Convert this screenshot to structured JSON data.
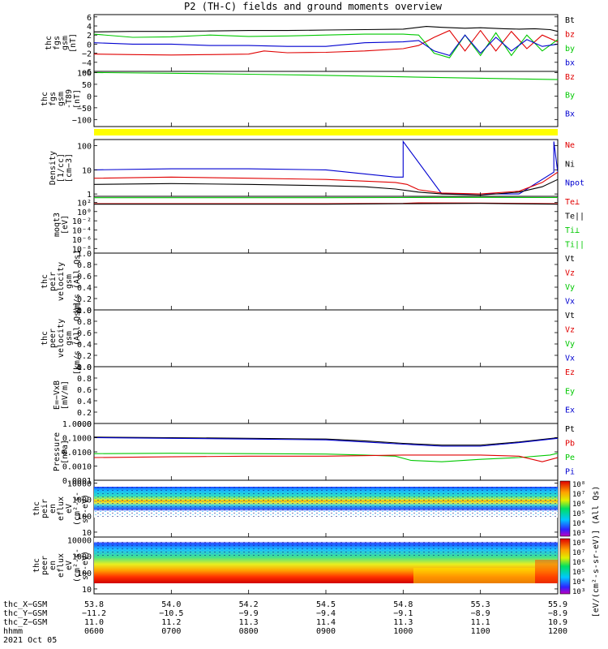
{
  "title": "P2 (TH-C) fields and ground moments overview",
  "colors": {
    "black": "#000000",
    "red": "#e00000",
    "green": "#00c800",
    "blue": "#0000d0"
  },
  "chart_data": [
    {
      "type": "line",
      "name": "fgs-gsm",
      "ylabel_lines": [
        "thc",
        "fgs",
        "gsm",
        "[nT]"
      ],
      "yticks": [
        "6",
        "4",
        "2",
        "0",
        "−2",
        "−4",
        "−6"
      ],
      "ylim": [
        -6,
        6.5
      ],
      "legend": [
        {
          "label": "Bt",
          "color": "black"
        },
        {
          "label": "bz",
          "color": "red"
        },
        {
          "label": "by",
          "color": "green"
        },
        {
          "label": "bx",
          "color": "blue"
        }
      ],
      "series": [
        {
          "name": "Bt",
          "color": "black",
          "x": [
            6.0,
            6.5,
            7.0,
            7.5,
            8.0,
            8.5,
            9.0,
            9.5,
            10.0,
            10.3,
            10.5,
            10.8,
            11.0,
            11.3,
            11.5,
            11.7,
            11.9,
            12.0
          ],
          "y": [
            2.7,
            2.8,
            2.8,
            2.9,
            3.0,
            3.0,
            3.1,
            3.2,
            3.3,
            3.9,
            3.7,
            3.5,
            3.6,
            3.4,
            3.3,
            3.4,
            3.2,
            2.8
          ]
        },
        {
          "name": "bz",
          "color": "red",
          "x": [
            6.0,
            6.5,
            7.0,
            7.5,
            8.0,
            8.2,
            8.5,
            9.0,
            9.5,
            10.0,
            10.2,
            10.4,
            10.6,
            10.8,
            11.0,
            11.2,
            11.4,
            11.6,
            11.8,
            12.0
          ],
          "y": [
            -2.2,
            -2.3,
            -2.4,
            -2.3,
            -2.2,
            -1.5,
            -1.9,
            -1.8,
            -1.5,
            -1.0,
            -0.3,
            1.5,
            3.0,
            -1.5,
            3.0,
            -1.5,
            2.8,
            -1.0,
            2.0,
            0.5
          ]
        },
        {
          "name": "by",
          "color": "green",
          "x": [
            6.0,
            6.5,
            7.0,
            7.5,
            8.0,
            8.5,
            9.0,
            9.5,
            10.0,
            10.2,
            10.4,
            10.6,
            10.8,
            11.0,
            11.2,
            11.4,
            11.6,
            11.8,
            12.0
          ],
          "y": [
            2.2,
            1.5,
            1.6,
            2.0,
            1.7,
            1.8,
            2.0,
            2.2,
            2.2,
            2.0,
            -2.0,
            -3.0,
            2.0,
            -2.5,
            2.5,
            -2.5,
            2.0,
            -1.5,
            1.0
          ]
        },
        {
          "name": "bx",
          "color": "blue",
          "x": [
            6.0,
            6.5,
            7.0,
            7.5,
            8.0,
            8.5,
            9.0,
            9.5,
            10.0,
            10.2,
            10.4,
            10.6,
            10.8,
            11.0,
            11.2,
            11.4,
            11.6,
            11.8,
            12.0
          ],
          "y": [
            0.3,
            0.0,
            0.0,
            -0.3,
            -0.3,
            -0.5,
            -0.5,
            0.3,
            0.5,
            0.8,
            -1.5,
            -2.5,
            2.0,
            -2.0,
            1.5,
            -1.5,
            1.0,
            -0.5,
            0.0
          ]
        }
      ]
    },
    {
      "type": "line",
      "name": "fgs-gsm-t89",
      "ylabel_lines": [
        "thc",
        "fgs",
        "gsm",
        "-T89",
        "[nT]"
      ],
      "yticks": [
        "100",
        "50",
        "0",
        "−50",
        "−100"
      ],
      "ylim": [
        -130,
        105
      ],
      "legend": [
        {
          "label": "Bz",
          "color": "red"
        },
        {
          "label": "By",
          "color": "green"
        },
        {
          "label": "Bx",
          "color": "blue"
        }
      ],
      "series": [
        {
          "name": "By",
          "color": "green",
          "x": [
            6.0,
            7.0,
            8.0,
            9.0,
            10.0,
            11.0,
            12.0
          ],
          "y": [
            100,
            97,
            93,
            88,
            82,
            76,
            70
          ]
        }
      ],
      "band_color": "#ffff00"
    },
    {
      "type": "line",
      "name": "density",
      "yscale": "log",
      "ylabel_lines": [
        "Density",
        "[1/cc]",
        "[cm−3]"
      ],
      "yticks": [
        "100",
        "10",
        "1"
      ],
      "ylim": [
        0.8,
        180
      ],
      "legend": [
        {
          "label": "Ne",
          "color": "red"
        },
        {
          "label": "Ni",
          "color": "black"
        },
        {
          "label": "Npot",
          "color": "blue"
        }
      ],
      "series": [
        {
          "name": "Npot",
          "color": "blue",
          "x": [
            6.0,
            7.0,
            8.0,
            9.0,
            9.9,
            10.0,
            10.0,
            10.5,
            11.0,
            11.5,
            11.95,
            11.95,
            12.0
          ],
          "y": [
            10,
            11,
            11,
            10,
            5,
            5,
            150,
            1.0,
            1.0,
            1.0,
            8,
            150,
            8
          ]
        },
        {
          "name": "Ne",
          "color": "red",
          "x": [
            6.0,
            7.0,
            8.0,
            9.0,
            9.9,
            10.05,
            10.2,
            10.5,
            11.0,
            11.5,
            11.8,
            12.0
          ],
          "y": [
            4.5,
            5,
            4.5,
            4,
            3,
            2.5,
            1.5,
            1.1,
            1.0,
            1.3,
            3,
            8
          ]
        },
        {
          "name": "Ni",
          "color": "black",
          "x": [
            6.0,
            7.0,
            8.0,
            9.0,
            9.5,
            9.9,
            10.2,
            10.5,
            11.0,
            11.5,
            11.8,
            12.0
          ],
          "y": [
            2.5,
            2.7,
            2.5,
            2.2,
            2.0,
            1.6,
            1.2,
            1.0,
            0.9,
            1.2,
            2,
            4
          ]
        }
      ]
    },
    {
      "type": "line",
      "name": "moqt3",
      "yscale": "log",
      "ylabel_lines": [
        "moqt3",
        "[eV]"
      ],
      "yticks": [
        "10²",
        "10⁰",
        "10⁻²",
        "10⁻⁴",
        "10⁻⁶",
        "10⁻⁸"
      ],
      "ylim": [
        1e-09,
        2000
      ],
      "legend": [
        {
          "label": "Te⊥",
          "color": "red"
        },
        {
          "label": "Te||",
          "color": "black"
        },
        {
          "label": "Ti⊥",
          "color": "green"
        },
        {
          "label": "Ti||",
          "color": "green"
        }
      ],
      "series": [
        {
          "name": "Ti||",
          "color": "green",
          "x": [
            6.0,
            9.0,
            10.0,
            11.0,
            12.0
          ],
          "y": [
            1000,
            1000,
            1100,
            1200,
            1100
          ]
        },
        {
          "name": "Te⊥",
          "color": "red",
          "x": [
            6.0,
            9.0,
            10.0,
            10.2,
            11.0,
            12.0
          ],
          "y": [
            50,
            50,
            60,
            80,
            70,
            50
          ]
        },
        {
          "name": "Te||",
          "color": "black",
          "x": [
            6.0,
            9.0,
            10.0,
            11.0,
            12.0
          ],
          "y": [
            40,
            40,
            50,
            60,
            40
          ]
        }
      ]
    },
    {
      "type": "line",
      "name": "peir-velocity",
      "ylabel_lines": [
        "thc",
        "peir",
        "velocity",
        "gsm",
        "km/s (All Qs)"
      ],
      "yticks": [
        "1.0",
        "0.8",
        "0.6",
        "0.4",
        "0.2",
        "0.0"
      ],
      "ylim": [
        0,
        1
      ],
      "legend": [
        {
          "label": "Vt",
          "color": "black"
        },
        {
          "label": "Vz",
          "color": "red"
        },
        {
          "label": "Vy",
          "color": "green"
        },
        {
          "label": "Vx",
          "color": "blue"
        }
      ],
      "series": []
    },
    {
      "type": "line",
      "name": "peer-velocity",
      "ylabel_lines": [
        "thc",
        "peer",
        "velocity",
        "gsm",
        "[km/s (All Qs)]"
      ],
      "yticks": [
        "1.0",
        "0.8",
        "0.6",
        "0.4",
        "0.2",
        "0.0"
      ],
      "ylim": [
        0,
        1
      ],
      "legend": [
        {
          "label": "Vt",
          "color": "black"
        },
        {
          "label": "Vz",
          "color": "red"
        },
        {
          "label": "Vy",
          "color": "green"
        },
        {
          "label": "Vx",
          "color": "blue"
        }
      ],
      "series": []
    },
    {
      "type": "line",
      "name": "e-field",
      "ylabel_lines": [
        "E=−VxB",
        "[mV/m]"
      ],
      "yticks": [
        "1.0",
        "0.8",
        "0.6",
        "0.4",
        "0.2",
        "0.0"
      ],
      "ylim": [
        0,
        1
      ],
      "legend": [
        {
          "label": "Ez",
          "color": "red"
        },
        {
          "label": "Ey",
          "color": "green"
        },
        {
          "label": "Ex",
          "color": "blue"
        }
      ],
      "series": []
    },
    {
      "type": "line",
      "name": "pressure",
      "yscale": "log",
      "ylabel_lines": [
        "Pressure",
        "[nPa]"
      ],
      "yticks": [
        "1.0000",
        "0.1000",
        "0.0100",
        "0.0010",
        "0.0001"
      ],
      "ylim": [
        0.0001,
        1
      ],
      "legend": [
        {
          "label": "Pt",
          "color": "black"
        },
        {
          "label": "Pb",
          "color": "red"
        },
        {
          "label": "Pe",
          "color": "green"
        },
        {
          "label": "Pi",
          "color": "blue"
        }
      ],
      "series": [
        {
          "name": "Pt",
          "color": "black",
          "x": [
            6.0,
            7.0,
            8.0,
            9.0,
            9.5,
            10.0,
            10.5,
            11.0,
            11.5,
            12.0
          ],
          "y": [
            0.11,
            0.1,
            0.09,
            0.08,
            0.06,
            0.04,
            0.03,
            0.03,
            0.05,
            0.1
          ]
        },
        {
          "name": "Pi",
          "color": "blue",
          "x": [
            6.0,
            7.0,
            8.0,
            9.0,
            9.5,
            10.0,
            10.5,
            11.0,
            11.5,
            12.0
          ],
          "y": [
            0.1,
            0.09,
            0.08,
            0.07,
            0.05,
            0.035,
            0.025,
            0.025,
            0.045,
            0.09
          ]
        },
        {
          "name": "Pe",
          "color": "green",
          "x": [
            6.0,
            7.0,
            8.0,
            9.0,
            9.5,
            9.9,
            10.1,
            10.5,
            11.0,
            11.5,
            11.9,
            12.0
          ],
          "y": [
            0.0075,
            0.008,
            0.0075,
            0.007,
            0.006,
            0.005,
            0.0025,
            0.002,
            0.003,
            0.004,
            0.006,
            0.008
          ]
        },
        {
          "name": "Pb",
          "color": "red",
          "x": [
            6.0,
            7.0,
            8.0,
            9.0,
            10.0,
            11.0,
            11.5,
            11.8,
            12.0
          ],
          "y": [
            0.004,
            0.0045,
            0.005,
            0.005,
            0.006,
            0.006,
            0.005,
            0.002,
            0.004
          ]
        }
      ]
    },
    {
      "type": "heatmap",
      "name": "peir-spectrogram",
      "yscale": "log",
      "ylabel_lines": [
        "thc",
        "peir",
        "en",
        "eflux",
        "eV",
        "(cm²-s-",
        "sr-eV)"
      ],
      "yticks": [
        "10000",
        "1000",
        "100",
        "10"
      ],
      "ylim": [
        5,
        15000
      ]
    },
    {
      "type": "heatmap",
      "name": "peer-spectrogram",
      "yscale": "log",
      "ylabel_lines": [
        "thc",
        "peer",
        "en",
        "eflux",
        "eV",
        "(cm²-s-",
        "sr-eV)"
      ],
      "yticks": [
        "10000",
        "1000",
        "100",
        "10"
      ],
      "ylim": [
        5,
        15000
      ]
    }
  ],
  "colorbar": {
    "labels": [
      "10⁸",
      "10⁷",
      "10⁶",
      "10⁵",
      "10⁴",
      "10³",
      "10⁸",
      "10⁷",
      "10⁶",
      "10⁵",
      "10⁴",
      "10³"
    ],
    "title": "[eV/(cm²-s-sr-eV)] (All Qs)"
  },
  "xaxis": {
    "rows": [
      {
        "label": "thc_X−GSM",
        "values": [
          "53.8",
          "54.0",
          "54.2",
          "54.5",
          "54.8",
          "55.3",
          "55.9"
        ]
      },
      {
        "label": "thc_Y−GSM",
        "values": [
          "−11.2",
          "−10.5",
          "−9.9",
          "−9.4",
          "−9.1",
          "−8.9",
          "−8.9"
        ]
      },
      {
        "label": "thc_Z−GSM",
        "values": [
          "11.0",
          "11.2",
          "11.3",
          "11.4",
          "11.3",
          "11.1",
          "10.9"
        ]
      },
      {
        "label": "hhmm",
        "values": [
          "0600",
          "0700",
          "0800",
          "0900",
          "1000",
          "1100",
          "1200"
        ]
      }
    ],
    "date": "2021 Oct 05"
  }
}
